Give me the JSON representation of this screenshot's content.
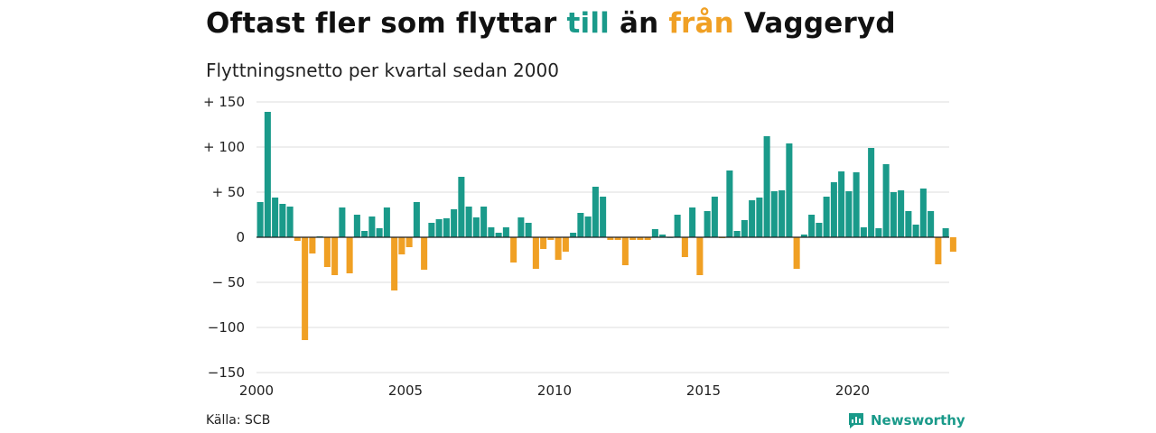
{
  "title": {
    "part1": "Oftast fler som flyttar ",
    "till": "till",
    "part2": " än ",
    "fran": "från",
    "part3": " Vaggeryd"
  },
  "subtitle": "Flyttningsnetto per kvartal sedan 2000",
  "source": "Källa: SCB",
  "logo_text": "Newsworthy",
  "colors": {
    "positive": "#1a9a8a",
    "negative": "#f0a024",
    "grid": "#dddddd",
    "zero": "#222222"
  },
  "chart_data": {
    "type": "bar",
    "title": "Oftast fler som flyttar till än från Vaggeryd",
    "subtitle": "Flyttningsnetto per kvartal sedan 2000",
    "ylim": [
      -150,
      150
    ],
    "yticks": [
      {
        "value": 150,
        "label": "+ 150"
      },
      {
        "value": 100,
        "label": "+ 100"
      },
      {
        "value": 50,
        "label": "+  50"
      },
      {
        "value": 0,
        "label": "0"
      },
      {
        "value": -50,
        "label": "− 50"
      },
      {
        "value": -100,
        "label": "−100"
      },
      {
        "value": -150,
        "label": "−150"
      }
    ],
    "xticks": [
      {
        "year": 2000,
        "label": "2000"
      },
      {
        "year": 2005,
        "label": "2005"
      },
      {
        "year": 2010,
        "label": "2010"
      },
      {
        "year": 2015,
        "label": "2015"
      },
      {
        "year": 2020,
        "label": "2020"
      }
    ],
    "start_year": 2000,
    "grid": true,
    "values": [
      39,
      139,
      44,
      37,
      34,
      -4,
      -114,
      -18,
      1,
      -33,
      -42,
      33,
      -40,
      25,
      7,
      23,
      10,
      33,
      -59,
      -19,
      -11,
      39,
      -36,
      16,
      20,
      21,
      31,
      67,
      34,
      22,
      34,
      11,
      5,
      11,
      -28,
      22,
      16,
      -35,
      -13,
      -3,
      -25,
      -16,
      5,
      27,
      23,
      56,
      45,
      -3,
      -3,
      -31,
      -3,
      -3,
      -3,
      9,
      3,
      0,
      25,
      -22,
      33,
      -42,
      29,
      45,
      -1,
      74,
      7,
      19,
      41,
      44,
      112,
      51,
      52,
      104,
      -35,
      3,
      25,
      16,
      45,
      61,
      73,
      51,
      72,
      11,
      99,
      10,
      81,
      50,
      52,
      29,
      14,
      54,
      29,
      -30,
      10,
      -16
    ]
  }
}
